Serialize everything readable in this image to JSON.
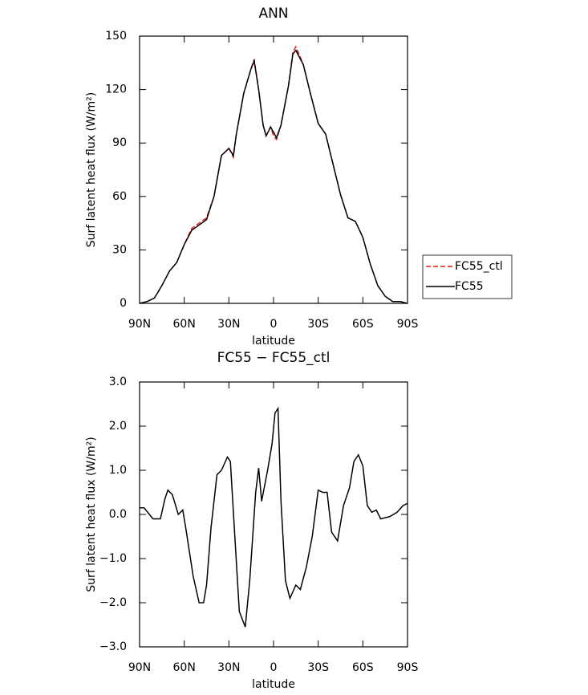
{
  "chart_data": [
    {
      "type": "line",
      "title": "ANN",
      "xlabel": "latitude",
      "ylabel": "Surf latent heat flux (W/m²)",
      "xlim": [
        90,
        -90
      ],
      "ylim": [
        0,
        150
      ],
      "xticks": [
        {
          "value": 90,
          "label": "90N"
        },
        {
          "value": 60,
          "label": "60N"
        },
        {
          "value": 30,
          "label": "30N"
        },
        0,
        {
          "value": -30,
          "label": "30S"
        },
        {
          "value": -60,
          "label": "60S"
        },
        {
          "value": -90,
          "label": "90S"
        }
      ],
      "yticks": [
        0,
        30,
        60,
        90,
        120,
        150
      ],
      "legend": "right",
      "x": [
        90,
        85,
        80,
        75,
        70,
        65,
        60,
        55,
        50,
        45,
        40,
        35,
        30,
        27,
        25,
        20,
        15,
        13,
        10,
        7,
        5,
        2,
        0,
        -2,
        -5,
        -10,
        -13,
        -15,
        -20,
        -25,
        -30,
        -35,
        -40,
        -45,
        -50,
        -55,
        -60,
        -65,
        -70,
        -75,
        -80,
        -85,
        -90
      ],
      "series": [
        {
          "name": "FC55_ctl",
          "color": "#e02020",
          "line_style": "dashed",
          "values": [
            0,
            1,
            3,
            10,
            18,
            23,
            33,
            42,
            45,
            48,
            60,
            83,
            87,
            82,
            95,
            118,
            132,
            137,
            120,
            100,
            94,
            99,
            94,
            92,
            100,
            122,
            141,
            144,
            134,
            117,
            101,
            95,
            78,
            61,
            48,
            46,
            37,
            22,
            10,
            4,
            1,
            1,
            0
          ]
        },
        {
          "name": "FC55",
          "color": "#000000",
          "line_style": "solid",
          "values": [
            0,
            1,
            3,
            10,
            18,
            23,
            33,
            41,
            44,
            47,
            60,
            83,
            87,
            83,
            95,
            118,
            132,
            136,
            120,
            100,
            94,
            99,
            96,
            93,
            100,
            122,
            140,
            142,
            134,
            117,
            101,
            95,
            78,
            61,
            48,
            46,
            37,
            22,
            10,
            4,
            1,
            1,
            0
          ]
        }
      ]
    },
    {
      "type": "line",
      "title": "FC55 − FC55_ctl",
      "xlabel": "latitude",
      "ylabel": "Surf latent heat flux (W/m²)",
      "xlim": [
        90,
        -90
      ],
      "ylim": [
        -3,
        3
      ],
      "xticks": [
        {
          "value": 90,
          "label": "90N"
        },
        {
          "value": 60,
          "label": "60N"
        },
        {
          "value": 30,
          "label": "30N"
        },
        0,
        {
          "value": -30,
          "label": "30S"
        },
        {
          "value": -60,
          "label": "60S"
        },
        {
          "value": -90,
          "label": "90S"
        }
      ],
      "yticks": [
        {
          "value": -3,
          "label": "−3.0"
        },
        {
          "value": -2,
          "label": "−2.0"
        },
        {
          "value": -1,
          "label": "−1.0"
        },
        {
          "value": 0,
          "label": "0.0"
        },
        {
          "value": 1,
          "label": "1.0"
        },
        {
          "value": 2,
          "label": "2.0"
        },
        {
          "value": 3,
          "label": "3.0"
        }
      ],
      "x": [
        90,
        87,
        81,
        76,
        73,
        71,
        68,
        64,
        61,
        59,
        54,
        50,
        47,
        45,
        42,
        38,
        35,
        31,
        29,
        26,
        23,
        19,
        16,
        12,
        10,
        8,
        4,
        1,
        -1,
        -3,
        -5,
        -8,
        -11,
        -15,
        -18,
        -22,
        -26,
        -30,
        -33,
        -36,
        -39,
        -43,
        -47,
        -51,
        -54,
        -57,
        -60,
        -63,
        -66,
        -69,
        -72,
        -78,
        -83,
        -87,
        -90
      ],
      "series": [
        {
          "color": "#000000",
          "line_style": "solid",
          "values": [
            0.15,
            0.15,
            -0.1,
            -0.1,
            0.35,
            0.55,
            0.45,
            0.0,
            0.1,
            -0.3,
            -1.4,
            -2.0,
            -2.0,
            -1.6,
            -0.3,
            0.9,
            1.0,
            1.3,
            1.2,
            -0.5,
            -2.2,
            -2.55,
            -1.5,
            0.5,
            1.05,
            0.3,
            1.0,
            1.6,
            2.3,
            2.4,
            0.3,
            -1.5,
            -1.9,
            -1.6,
            -1.7,
            -1.2,
            -0.5,
            0.55,
            0.5,
            0.5,
            -0.4,
            -0.6,
            0.2,
            0.6,
            1.2,
            1.35,
            1.1,
            0.2,
            0.05,
            0.1,
            -0.1,
            -0.05,
            0.05,
            0.2,
            0.25
          ]
        }
      ]
    }
  ]
}
